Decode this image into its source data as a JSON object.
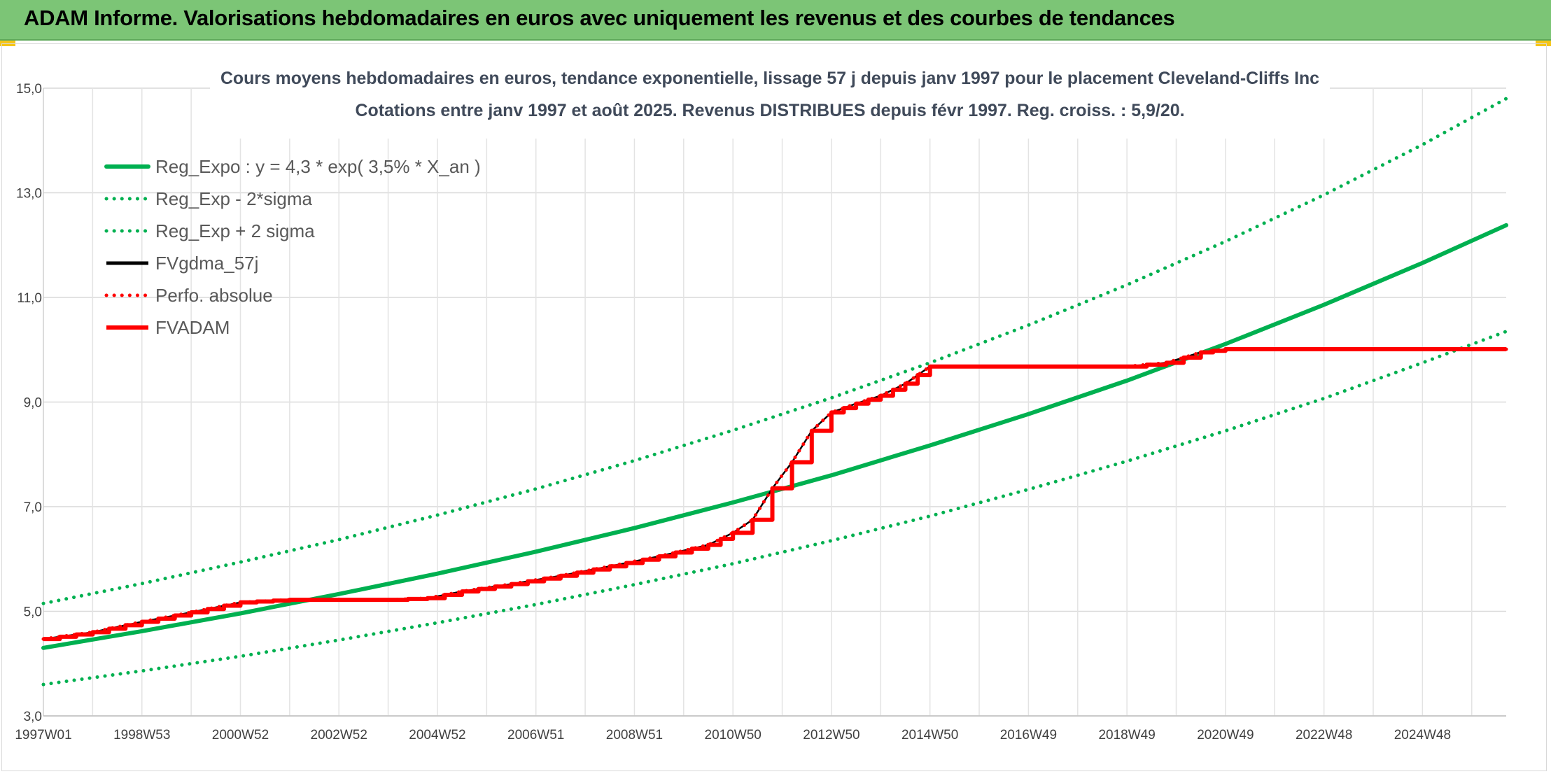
{
  "banner": {
    "title": "ADAM Informe. Valorisations hebdomadaires en euros avec uniquement les revenus et des courbes de tendances"
  },
  "chart_data": {
    "type": "line",
    "title_line1": "Cours moyens hebdomadaires en euros, tendance exponentielle, lissage 57 j depuis janv 1997 pour le placement Cleveland-Cliffs Inc",
    "title_line2": "Cotations entre janv 1997 et août 2025. Revenus DISTRIBUES depuis févr 1997. Reg. croiss. : 5,9/20.",
    "xlabel": "",
    "ylabel": "",
    "x_unit": "year",
    "xlim": [
      1997.0,
      2026.7
    ],
    "ylim": [
      3.0,
      15.0
    ],
    "y_ticks": [
      "3,0",
      "5,0",
      "7,0",
      "9,0",
      "11,0",
      "13,0",
      "15,0"
    ],
    "y_tick_values": [
      3,
      5,
      7,
      9,
      11,
      13,
      15
    ],
    "x_tick_labels": [
      "1997W01",
      "1998W53",
      "2000W52",
      "2002W52",
      "2004W52",
      "2006W51",
      "2008W51",
      "2010W50",
      "2012W50",
      "2014W50",
      "2016W49",
      "2018W49",
      "2020W49",
      "2022W48",
      "2024W48"
    ],
    "x_tick_values": [
      1997.0,
      1999.0,
      2001.0,
      2003.0,
      2005.0,
      2007.0,
      2009.0,
      2011.0,
      2013.0,
      2015.0,
      2017.0,
      2019.0,
      2021.0,
      2023.0,
      2025.0
    ],
    "grid": true,
    "legend_position": "top-left",
    "series": [
      {
        "name": "Reg_Expo : y = 4,3 * exp( 3,5% *  X_an )",
        "color": "#00b050",
        "style": "solid",
        "x": [
          1997,
          1999,
          2001,
          2003,
          2005,
          2007,
          2009,
          2011,
          2013,
          2015,
          2017,
          2019,
          2021,
          2023,
          2025,
          2026.7
        ],
        "y": [
          4.3,
          4.62,
          4.96,
          5.33,
          5.72,
          6.14,
          6.59,
          7.08,
          7.6,
          8.17,
          8.77,
          9.41,
          10.11,
          10.86,
          11.66,
          12.38
        ]
      },
      {
        "name": "Reg_Exp - 2*sigma",
        "color": "#00b050",
        "style": "dotted",
        "x": [
          1997,
          1999,
          2001,
          2003,
          2005,
          2007,
          2009,
          2011,
          2013,
          2015,
          2017,
          2019,
          2021,
          2023,
          2025,
          2026.7
        ],
        "y": [
          3.6,
          3.86,
          4.14,
          4.45,
          4.78,
          5.13,
          5.51,
          5.91,
          6.35,
          6.82,
          7.33,
          7.87,
          8.45,
          9.07,
          9.75,
          10.35
        ]
      },
      {
        "name": "Reg_Exp + 2 sigma",
        "color": "#00b050",
        "style": "dotted",
        "x": [
          1997,
          1999,
          2001,
          2003,
          2005,
          2007,
          2009,
          2011,
          2013,
          2015,
          2017,
          2019,
          2021,
          2023,
          2025,
          2026.7
        ],
        "y": [
          5.15,
          5.53,
          5.94,
          6.37,
          6.84,
          7.34,
          7.88,
          8.46,
          9.08,
          9.75,
          10.47,
          11.24,
          12.07,
          12.96,
          13.92,
          14.8
        ]
      },
      {
        "name": "FVgdma_57j",
        "color": "#000000",
        "style": "solid",
        "x": [
          1997.0,
          1998.0,
          1999.0,
          2000.0,
          2001.0,
          2002.0,
          2003.0,
          2004.0,
          2004.8,
          2005.5,
          2006.5,
          2007.5,
          2008.5,
          2009.5,
          2010.5,
          2011.0,
          2011.4,
          2011.8,
          2012.2,
          2012.6,
          2013.0,
          2013.5,
          2014.0,
          2014.5,
          2015.0,
          2016.0,
          2017.0,
          2018.0,
          2019.0,
          2019.8,
          2020.5,
          2021.0,
          2022.0,
          2023.0,
          2024.0,
          2025.0,
          2026.7
        ],
        "y": [
          4.47,
          4.6,
          4.8,
          4.98,
          5.17,
          5.22,
          5.22,
          5.22,
          5.25,
          5.38,
          5.52,
          5.68,
          5.86,
          6.05,
          6.27,
          6.5,
          6.75,
          7.35,
          7.85,
          8.45,
          8.8,
          8.97,
          9.12,
          9.35,
          9.68,
          9.68,
          9.68,
          9.68,
          9.68,
          9.75,
          9.95,
          10.01,
          10.01,
          10.01,
          10.01,
          10.01,
          10.01
        ]
      },
      {
        "name": "Perfo. absolue",
        "color": "#ff0000",
        "style": "dotted",
        "x": [
          1997.0,
          1998.0,
          1999.0,
          2000.0,
          2001.0,
          2002.0,
          2003.0,
          2004.0,
          2004.8,
          2005.5,
          2006.5,
          2007.5,
          2008.5,
          2009.5,
          2010.5,
          2011.0,
          2011.4,
          2011.8,
          2012.2,
          2012.6,
          2013.0,
          2013.5,
          2014.0,
          2014.5,
          2015.0,
          2016.0,
          2017.0,
          2018.0,
          2019.0,
          2019.8,
          2020.5,
          2021.0,
          2022.0,
          2023.0,
          2024.0,
          2025.0,
          2026.7
        ],
        "y": [
          4.47,
          4.6,
          4.8,
          4.98,
          5.17,
          5.22,
          5.22,
          5.22,
          5.25,
          5.38,
          5.52,
          5.68,
          5.86,
          6.05,
          6.27,
          6.5,
          6.75,
          7.35,
          7.85,
          8.45,
          8.8,
          8.97,
          9.12,
          9.35,
          9.68,
          9.68,
          9.68,
          9.68,
          9.68,
          9.75,
          9.95,
          10.01,
          10.01,
          10.01,
          10.01,
          10.01,
          10.01
        ]
      },
      {
        "name": "FVADAM",
        "color": "#ff0000",
        "style": "solid",
        "x": [
          1997.0,
          1998.0,
          1999.0,
          2000.0,
          2001.0,
          2002.0,
          2003.0,
          2004.0,
          2004.8,
          2005.5,
          2006.5,
          2007.5,
          2008.5,
          2009.5,
          2010.5,
          2011.0,
          2011.4,
          2011.8,
          2012.2,
          2012.6,
          2013.0,
          2013.5,
          2014.0,
          2014.5,
          2015.0,
          2016.0,
          2017.0,
          2018.0,
          2019.0,
          2019.8,
          2020.5,
          2021.0,
          2022.0,
          2023.0,
          2024.0,
          2025.0,
          2026.7
        ],
        "y": [
          4.47,
          4.6,
          4.8,
          4.98,
          5.17,
          5.22,
          5.22,
          5.22,
          5.25,
          5.38,
          5.52,
          5.68,
          5.86,
          6.05,
          6.27,
          6.5,
          6.75,
          7.35,
          7.85,
          8.45,
          8.8,
          8.97,
          9.12,
          9.35,
          9.68,
          9.68,
          9.68,
          9.68,
          9.68,
          9.75,
          9.95,
          10.01,
          10.01,
          10.01,
          10.01,
          10.01,
          10.01
        ]
      }
    ]
  }
}
